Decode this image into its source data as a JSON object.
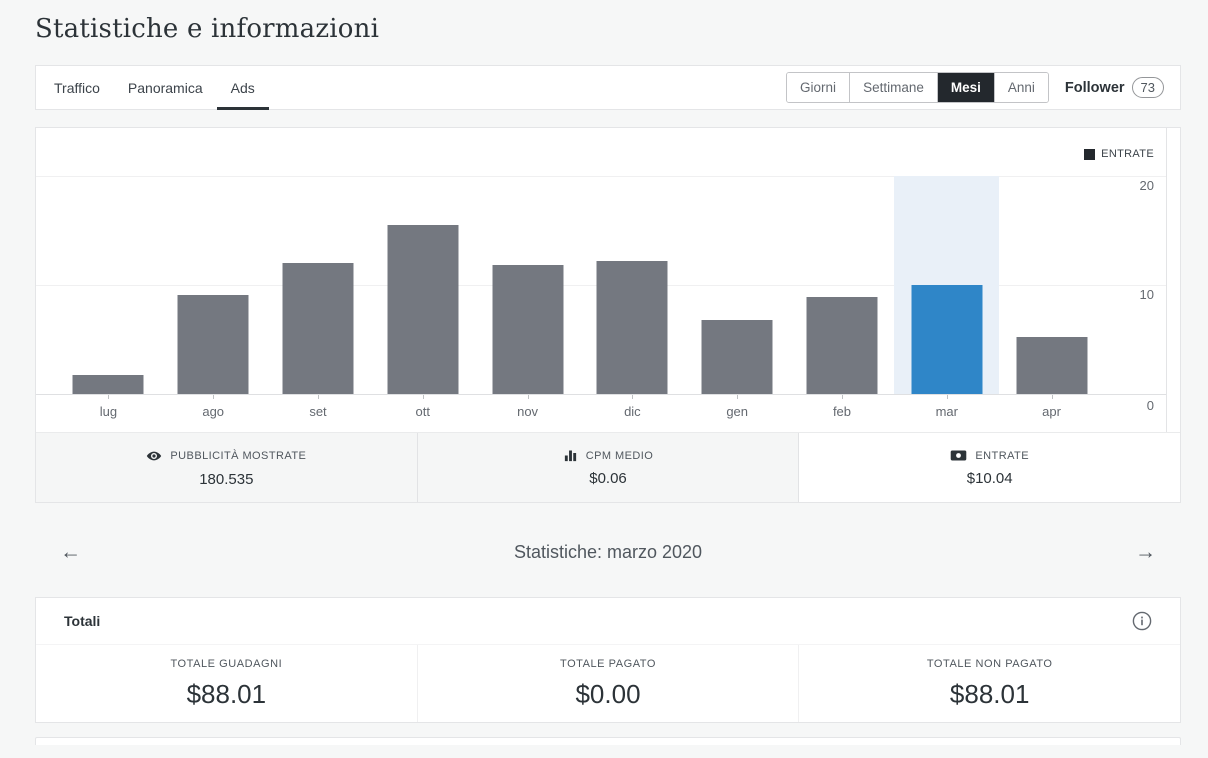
{
  "page": {
    "title": "Statistiche e informazioni"
  },
  "tabs": [
    {
      "label": "Traffico",
      "active": false
    },
    {
      "label": "Panoramica",
      "active": false
    },
    {
      "label": "Ads",
      "active": true
    }
  ],
  "period_buttons": [
    {
      "label": "Giorni",
      "active": false
    },
    {
      "label": "Settimane",
      "active": false
    },
    {
      "label": "Mesi",
      "active": true
    },
    {
      "label": "Anni",
      "active": false
    }
  ],
  "follower": {
    "label": "Follower",
    "count": "73"
  },
  "chart_data": {
    "type": "bar",
    "title": "",
    "xlabel": "",
    "ylabel": "",
    "legend_label": "ENTRATE",
    "legend_position": "top-right",
    "categories": [
      "lug",
      "ago",
      "set",
      "ott",
      "nov",
      "dic",
      "gen",
      "feb",
      "mar",
      "apr"
    ],
    "values": [
      1.7,
      9.1,
      12.0,
      15.5,
      11.8,
      12.2,
      6.8,
      8.9,
      10.04,
      5.2
    ],
    "highlighted_category": "mar",
    "ylim": [
      0,
      20
    ],
    "yticks": [
      0,
      10,
      20
    ],
    "grid": true,
    "colors": {
      "bar": "#747880",
      "highlight_bar": "#2f86c8",
      "highlight_band": "#e9f0f8",
      "legend_swatch": "#23282d"
    }
  },
  "summary_tabs": [
    {
      "icon": "eye-icon",
      "label": "PUBBLICITÀ MOSTRATE",
      "value": "180.535",
      "selected": false
    },
    {
      "icon": "bar-chart-icon",
      "label": "CPM MEDIO",
      "value": "$0.06",
      "selected": false
    },
    {
      "icon": "banknote-icon",
      "label": "ENTRATE",
      "value": "$10.04",
      "selected": true
    }
  ],
  "month_nav": {
    "title": "Statistiche: marzo 2020",
    "prev_arrow": "←",
    "next_arrow": "→"
  },
  "totals": {
    "heading": "Totali",
    "items": [
      {
        "label": "TOTALE GUADAGNI",
        "value": "$88.01"
      },
      {
        "label": "TOTALE PAGATO",
        "value": "$0.00"
      },
      {
        "label": "TOTALE NON PAGATO",
        "value": "$88.01"
      }
    ]
  }
}
